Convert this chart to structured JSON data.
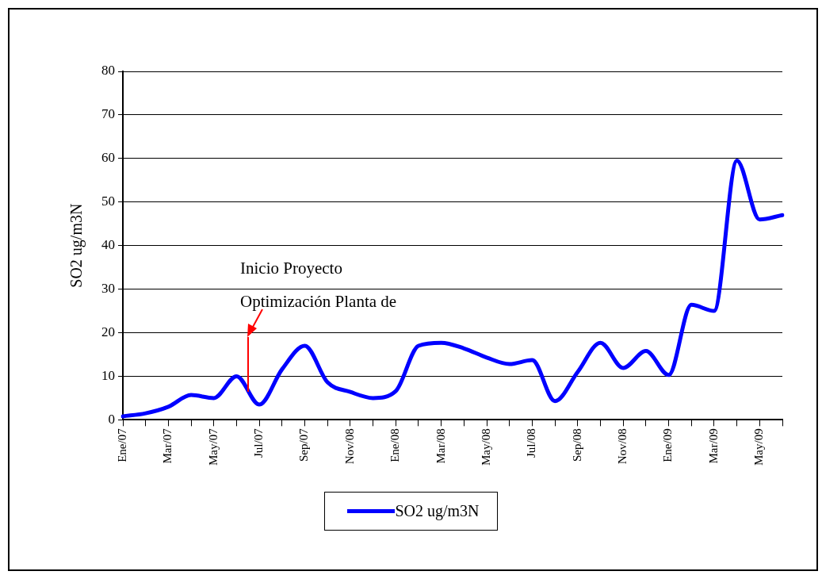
{
  "chart_data": {
    "type": "line",
    "ylabel": "SO2 ug/m3N",
    "categories": [
      "Ene/07",
      null,
      "Mar/07",
      null,
      "May/07",
      null,
      "Jul/07",
      null,
      "Sep/07",
      null,
      "Nov/08",
      null,
      "Ene/08",
      null,
      "Mar/08",
      null,
      "May/08",
      null,
      "Jul/08",
      null,
      "Sep/08",
      null,
      "Nov/08",
      null,
      "Ene/09",
      null,
      "Mar/09",
      null,
      "May/09",
      null
    ],
    "series": [
      {
        "name": "SO2 ug/m3N",
        "color": "#0000ff",
        "values": [
          0.8,
          1.5,
          3,
          5.7,
          5,
          10,
          3.5,
          11.6,
          17,
          8.6,
          6.4,
          5,
          6.6,
          17,
          17.7,
          16.4,
          14.3,
          12.8,
          13.7,
          4.3,
          11,
          17.7,
          11.9,
          15.8,
          10.3,
          26.4,
          25,
          59.5,
          46,
          47
        ]
      }
    ],
    "ylim": [
      0,
      80
    ],
    "yticks": [
      0,
      10,
      20,
      30,
      40,
      50,
      60,
      70,
      80
    ],
    "grid": "y",
    "legend": "bottom",
    "marker": "none",
    "line_style": "solid",
    "annotations": [
      "Inicio Proyecto Optimización Planta de"
    ]
  }
}
